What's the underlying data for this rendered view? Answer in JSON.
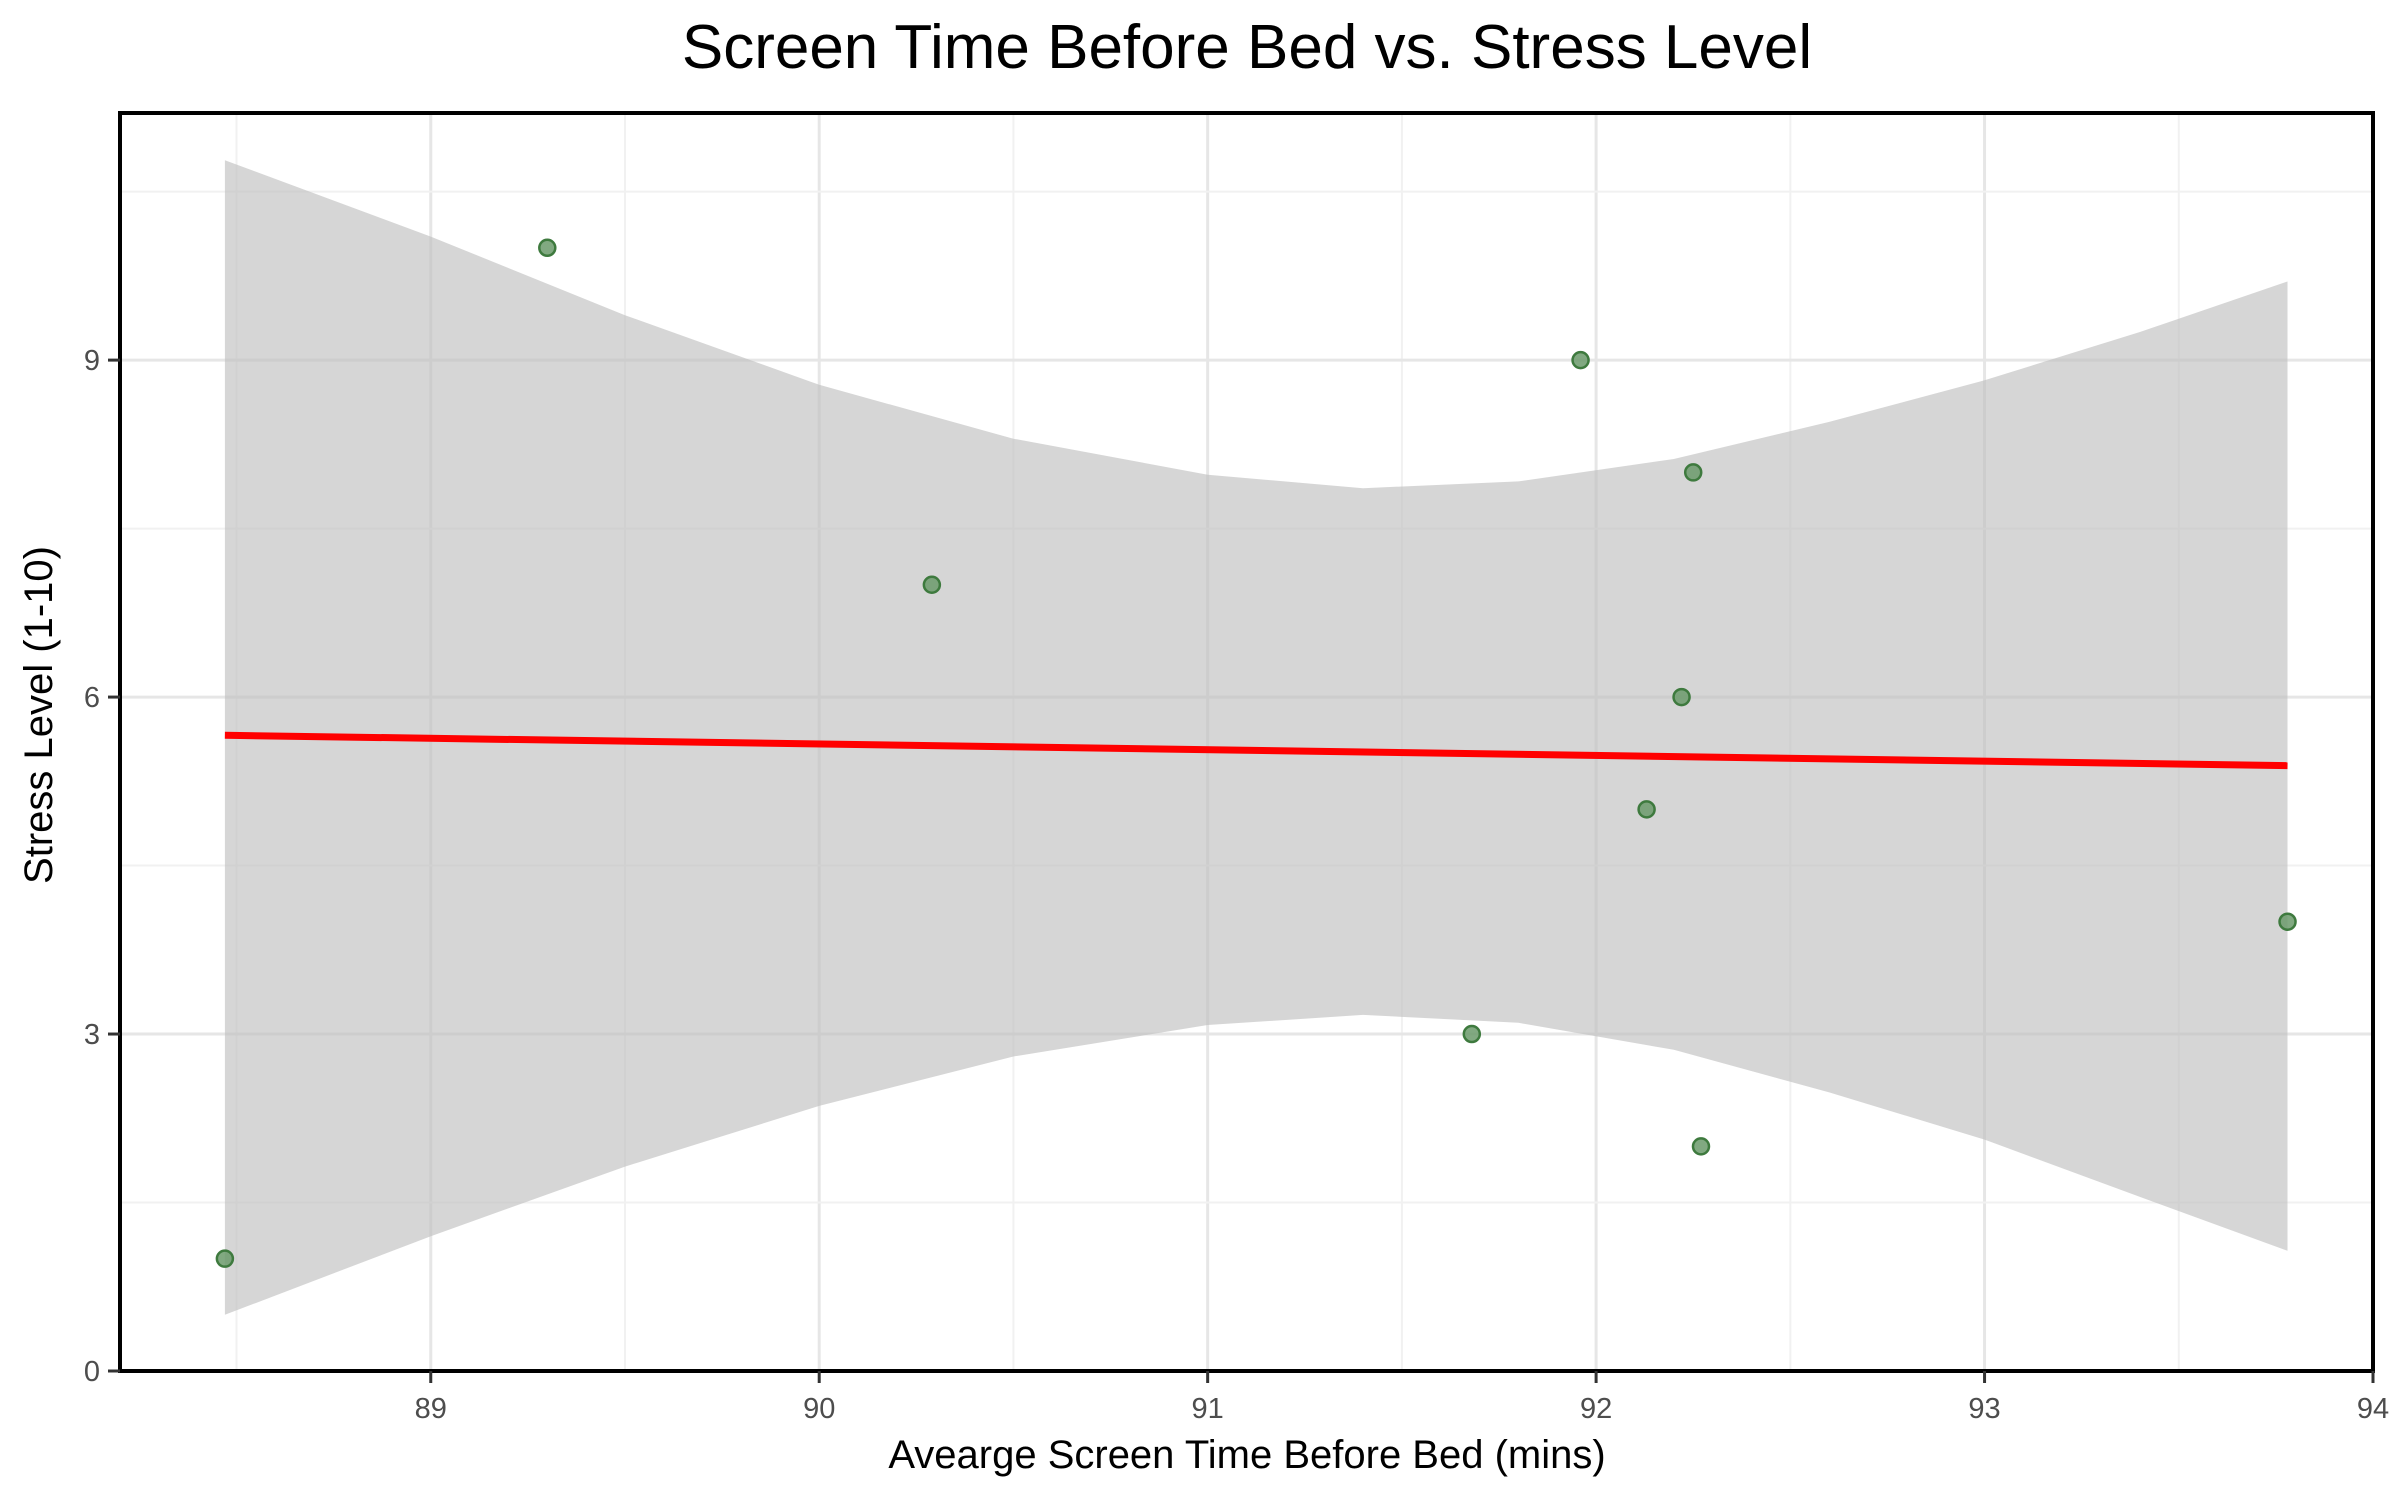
{
  "chart_data": {
    "type": "scatter",
    "title": "Screen Time Before Bed vs. Stress Level",
    "xlabel": "Avearge Screen Time Before Bed (mins)",
    "ylabel": "Stress Level (1-10)",
    "xlim": [
      88.2,
      94.0
    ],
    "ylim": [
      0,
      11.2
    ],
    "x_ticks": [
      89,
      90,
      91,
      92,
      93,
      94
    ],
    "y_ticks": [
      0,
      3,
      6,
      9
    ],
    "grid": true,
    "points": [
      {
        "x": 88.47,
        "y": 1
      },
      {
        "x": 89.3,
        "y": 10
      },
      {
        "x": 90.29,
        "y": 7
      },
      {
        "x": 91.68,
        "y": 3
      },
      {
        "x": 91.96,
        "y": 9
      },
      {
        "x": 92.13,
        "y": 5
      },
      {
        "x": 92.22,
        "y": 6
      },
      {
        "x": 92.25,
        "y": 8
      },
      {
        "x": 92.27,
        "y": 2
      },
      {
        "x": 93.78,
        "y": 4
      }
    ],
    "trend_line": {
      "x": [
        88.47,
        93.78
      ],
      "y": [
        5.66,
        5.39
      ]
    },
    "confidence_band": {
      "x": [
        88.47,
        89.0,
        89.5,
        90.0,
        90.5,
        91.0,
        91.4,
        91.8,
        92.2,
        92.6,
        93.0,
        93.4,
        93.78
      ],
      "upper": [
        10.78,
        10.1,
        9.4,
        8.78,
        8.3,
        7.98,
        7.86,
        7.92,
        8.12,
        8.45,
        8.82,
        9.25,
        9.7
      ],
      "lower": [
        0.5,
        1.2,
        1.82,
        2.36,
        2.8,
        3.08,
        3.17,
        3.1,
        2.86,
        2.48,
        2.06,
        1.55,
        1.07
      ]
    },
    "colors": {
      "point_fill": "#6b9a6b",
      "point_stroke": "#3e7a3e",
      "trend_line": "#ff0000",
      "band": "#bdbdbd",
      "grid": "#e6e6e6"
    }
  }
}
